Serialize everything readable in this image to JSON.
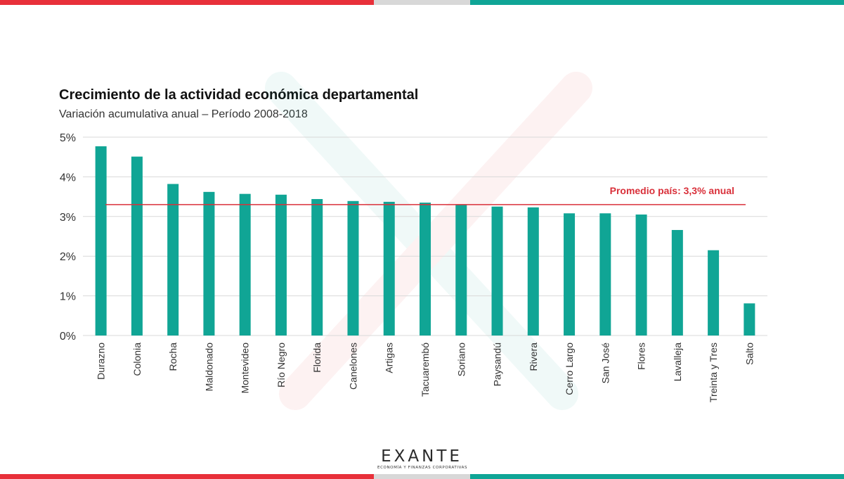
{
  "colors": {
    "bar": "#10a595",
    "average_line": "#d9303a",
    "brand_red": "#e8303a",
    "brand_teal": "#0fa596",
    "brand_gray": "#d8d8d8",
    "grid": "#d9d9d9",
    "axis_text": "#333333"
  },
  "chart_data": {
    "type": "bar",
    "title": "Crecimiento de la actividad económica departamental",
    "subtitle": "Variación acumulativa anual – Período 2008-2018",
    "xlabel": "",
    "ylabel": "",
    "categories": [
      "Durazno",
      "Colonia",
      "Rocha",
      "Maldonado",
      "Montevideo",
      "Río Negro",
      "Florida",
      "Canelones",
      "Artigas",
      "Tacuarembó",
      "Soriano",
      "Paysandú",
      "Rivera",
      "Cerro Largo",
      "San José",
      "Flores",
      "Lavalleja",
      "Treinta y Tres",
      "Salto"
    ],
    "values": [
      4.77,
      4.51,
      3.82,
      3.62,
      3.57,
      3.55,
      3.44,
      3.39,
      3.37,
      3.35,
      3.3,
      3.25,
      3.23,
      3.08,
      3.08,
      3.05,
      2.66,
      2.15,
      0.81
    ],
    "value_unit": "%",
    "ylim": [
      0,
      5
    ],
    "yticks": [
      0,
      1,
      2,
      3,
      4,
      5
    ],
    "ytick_labels": [
      "0%",
      "1%",
      "2%",
      "3%",
      "4%",
      "5%"
    ],
    "grid": true,
    "reference_line": {
      "value": 3.3,
      "label": "Promedio país: 3,3% anual"
    }
  },
  "logo": {
    "wordmark": "EXANTE",
    "tagline": "ECONOMÍA Y FINANZAS CORPORATIVAS"
  }
}
